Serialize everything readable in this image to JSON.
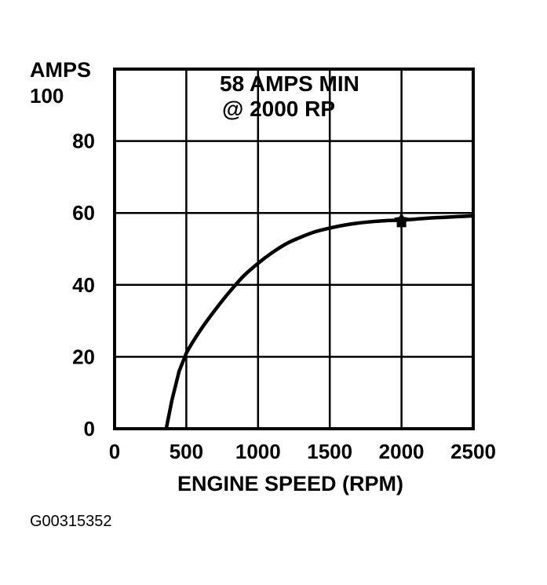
{
  "chart_data": {
    "type": "line",
    "title": "",
    "ylabel": "AMPS",
    "xlabel": "ENGINE SPEED (RPM)",
    "xlim": [
      0,
      2500
    ],
    "ylim": [
      0,
      100
    ],
    "x_ticks": [
      0,
      500,
      1000,
      1500,
      2000,
      2500
    ],
    "y_ticks": [
      0,
      20,
      40,
      60,
      80,
      100
    ],
    "x_tick_labels": [
      "0",
      "500",
      "1000",
      "1500",
      "2000",
      "2500"
    ],
    "y_tick_labels": [
      "0",
      "20",
      "40",
      "60",
      "80",
      "100"
    ],
    "grid": true,
    "annotation": {
      "lines": [
        "58 AMPS MIN",
        "@ 2000 RP"
      ],
      "marker_x": 2000,
      "marker_y": 58
    },
    "series": [
      {
        "name": "",
        "x": [
          360,
          400,
          450,
          500,
          600,
          700,
          800,
          900,
          1000,
          1100,
          1200,
          1300,
          1400,
          1500,
          1600,
          1700,
          1800,
          1900,
          2000,
          2100,
          2200,
          2300,
          2400,
          2500
        ],
        "y": [
          0,
          8,
          16,
          21,
          27.5,
          33,
          38,
          42.5,
          46,
          49,
          51.5,
          53.3,
          54.8,
          55.8,
          56.6,
          57.2,
          57.6,
          57.9,
          58,
          58.3,
          58.6,
          58.8,
          59,
          59.2
        ]
      }
    ]
  },
  "figure_id": "G00315352"
}
